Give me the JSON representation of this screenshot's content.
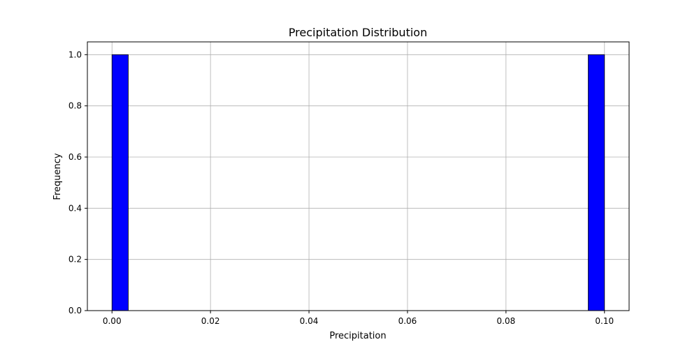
{
  "chart_data": {
    "type": "bar",
    "subtype": "histogram",
    "title": "Precipitation Distribution",
    "xlabel": "Precipitation",
    "ylabel": "Frequency",
    "xlim": [
      -0.005,
      0.105
    ],
    "ylim": [
      0,
      1.05
    ],
    "bins": [
      {
        "x0": 0.0,
        "x1": 0.0033,
        "count": 1
      },
      {
        "x0": 0.0967,
        "x1": 0.1,
        "count": 1
      }
    ],
    "xticks": [
      0.0,
      0.02,
      0.04,
      0.06,
      0.08,
      0.1
    ],
    "xtick_labels": [
      "0.00",
      "0.02",
      "0.04",
      "0.06",
      "0.08",
      "0.10"
    ],
    "yticks": [
      0.0,
      0.2,
      0.4,
      0.6,
      0.8,
      1.0
    ],
    "ytick_labels": [
      "0.0",
      "0.2",
      "0.4",
      "0.6",
      "0.8",
      "1.0"
    ],
    "grid": true,
    "bar_color": "#0000ff",
    "edge_color": "#000000"
  }
}
